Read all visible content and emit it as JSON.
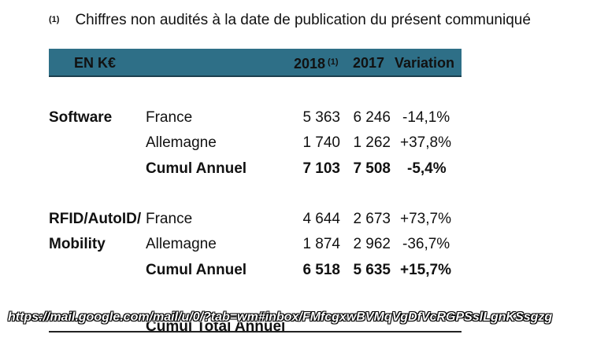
{
  "footnote": {
    "marker": "(1)",
    "text": "Chiffres non audités à la date de publication du présent communiqué"
  },
  "table": {
    "headers": {
      "unit": "EN K€",
      "col_2018": "2018",
      "col_2018_note": "(1)",
      "col_2017": "2017",
      "variation": "Variation"
    },
    "sections": [
      {
        "label_line1": "Software",
        "label_line2": "",
        "rows": [
          {
            "region": "France",
            "v2018": "5 363",
            "v2017": "6 246",
            "variation": "-14,1%",
            "bold": false
          },
          {
            "region": "Allemagne",
            "v2018": "1 740",
            "v2017": "1 262",
            "variation": "+37,8%",
            "bold": false
          },
          {
            "region": "Cumul Annuel",
            "v2018": "7 103",
            "v2017": "7 508",
            "variation": "-5,4%",
            "bold": true
          }
        ]
      },
      {
        "label_line1": "RFID/AutoID/",
        "label_line2": "Mobility",
        "rows": [
          {
            "region": "France",
            "v2018": "4 644",
            "v2017": "2 673",
            "variation": "+73,7%",
            "bold": false
          },
          {
            "region": "Allemagne",
            "v2018": "1 874",
            "v2017": "2 962",
            "variation": "-36,7%",
            "bold": false
          },
          {
            "region": "Cumul Annuel",
            "v2018": "6 518",
            "v2017": "5 635",
            "variation": "+15,7%",
            "bold": true
          }
        ]
      }
    ],
    "partial_total_label": "Cumul Total Annuel"
  },
  "overlay_url": "https://mail.google.com/mail/u/0/?tab=wm#inbox/FMfcgxwBVMqVgDfVcRGPSslLgnKSsgzg"
}
